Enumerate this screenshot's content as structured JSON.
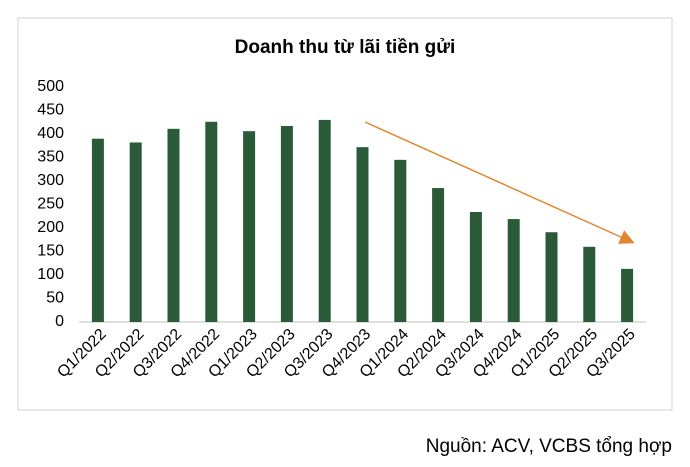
{
  "chart_data": {
    "type": "bar",
    "title": "Doanh thu từ lãi tiền gửi",
    "categories": [
      "Q1/2022",
      "Q2/2022",
      "Q3/2022",
      "Q4/2022",
      "Q1/2023",
      "Q2/2023",
      "Q3/2023",
      "Q4/2023",
      "Q1/2024",
      "Q2/2024",
      "Q3/2024",
      "Q4/2024",
      "Q1/2025",
      "Q2/2025",
      "Q3/2025"
    ],
    "values": [
      390,
      382,
      411,
      426,
      406,
      417,
      430,
      372,
      345,
      285,
      234,
      219,
      191,
      160,
      113
    ],
    "color": "#2a5a37",
    "ylim": [
      0,
      500
    ],
    "yticks": [
      0,
      50,
      100,
      150,
      200,
      250,
      300,
      350,
      400,
      450,
      500
    ],
    "grid": false,
    "source": "Nguồn: ACV, VCBS tổng hợp"
  }
}
